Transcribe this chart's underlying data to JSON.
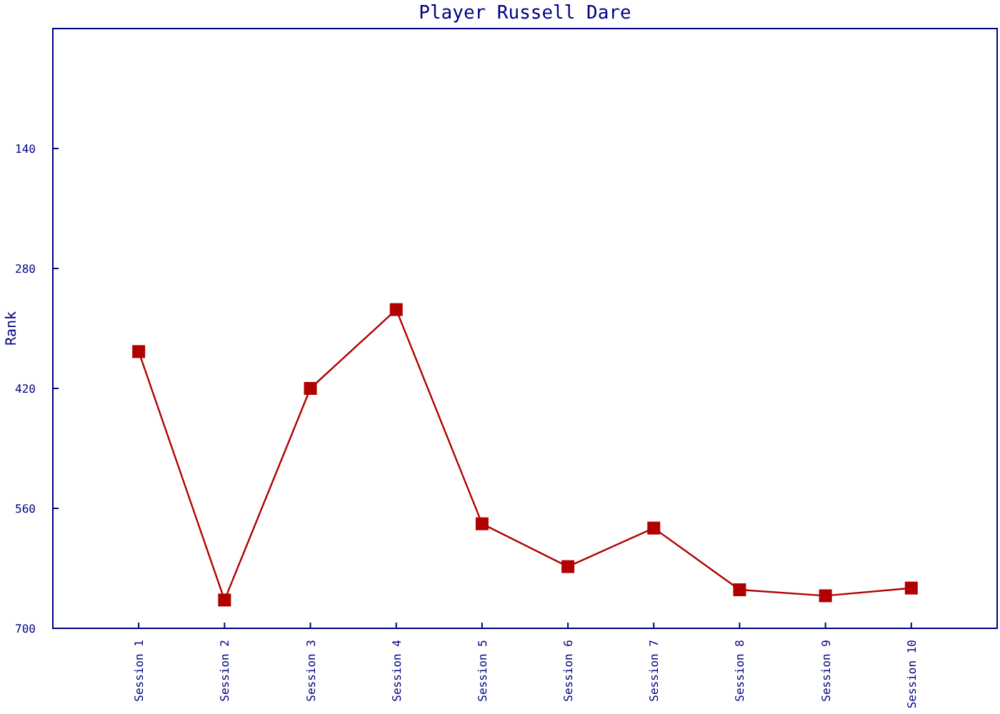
{
  "chart_data": {
    "type": "line",
    "title": "Player Russell Dare",
    "ylabel": "Rank",
    "categories": [
      "Session 1",
      "Session 2",
      "Session 3",
      "Session 4",
      "Session 5",
      "Session 6",
      "Session 7",
      "Session 8",
      "Session 9",
      "Session 10"
    ],
    "series": [
      {
        "color": "#b00000",
        "values": [
          377,
          667,
          420,
          328,
          578,
          628,
          583,
          655,
          662,
          653
        ]
      }
    ],
    "ylim": [
      700,
      0
    ],
    "yticks": [
      140,
      280,
      420,
      560,
      700
    ],
    "marker": "square",
    "line_style": "solid"
  }
}
